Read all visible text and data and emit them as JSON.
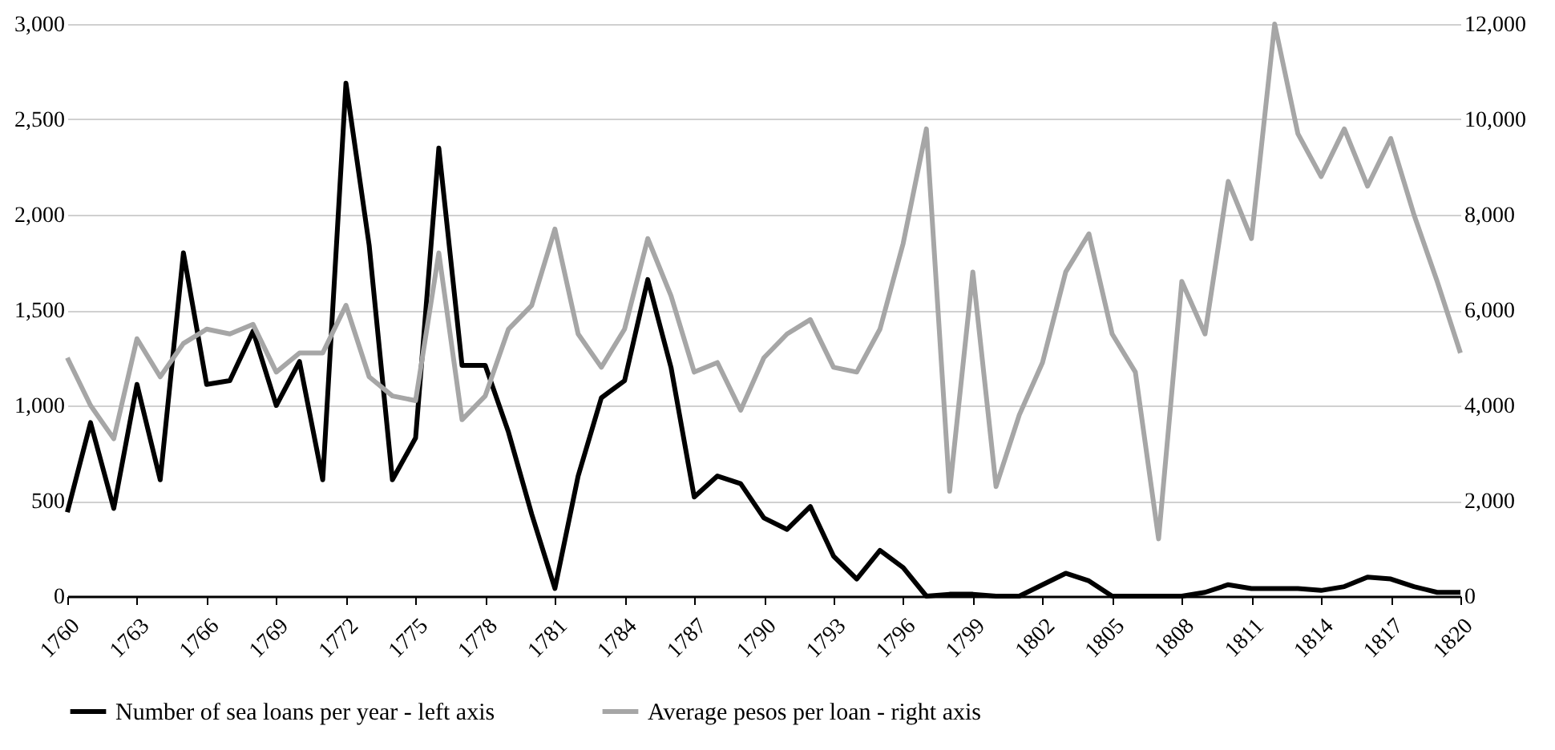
{
  "chart_data": {
    "type": "line",
    "x": [
      1760,
      1761,
      1762,
      1763,
      1764,
      1765,
      1766,
      1767,
      1768,
      1769,
      1770,
      1771,
      1772,
      1773,
      1774,
      1775,
      1776,
      1777,
      1778,
      1779,
      1780,
      1781,
      1782,
      1783,
      1784,
      1785,
      1786,
      1787,
      1788,
      1789,
      1790,
      1791,
      1792,
      1793,
      1794,
      1795,
      1796,
      1797,
      1798,
      1799,
      1800,
      1801,
      1802,
      1803,
      1804,
      1805,
      1806,
      1807,
      1808,
      1809,
      1810,
      1811,
      1812,
      1813,
      1814,
      1815,
      1816,
      1817,
      1818,
      1819,
      1820
    ],
    "series": [
      {
        "name": "Number of sea loans per year - left axis",
        "color": "#000000",
        "values": [
          440,
          910,
          460,
          1110,
          610,
          1800,
          1110,
          1130,
          1390,
          1000,
          1230,
          610,
          2690,
          1840,
          610,
          830,
          2350,
          1210,
          1210,
          860,
          430,
          40,
          630,
          1040,
          1130,
          1660,
          1200,
          520,
          630,
          590,
          410,
          350,
          470,
          210,
          90,
          240,
          150,
          0,
          10,
          10,
          0,
          0,
          60,
          120,
          80,
          0,
          0,
          0,
          0,
          20,
          60,
          40,
          40,
          40,
          30,
          50,
          100,
          90,
          50,
          20,
          20
        ]
      },
      {
        "name": "Average pesos per loan - right axis",
        "color": "#a6a6a6",
        "axis": "y2",
        "values": [
          5000,
          4000,
          3300,
          5400,
          4600,
          5300,
          5600,
          5500,
          5700,
          4700,
          5100,
          5100,
          6100,
          4600,
          4200,
          4100,
          7200,
          3700,
          4200,
          5600,
          6100,
          7700,
          5500,
          4800,
          5600,
          7500,
          6300,
          4700,
          4900,
          3900,
          5000,
          5500,
          5800,
          4800,
          4700,
          5600,
          7400,
          9800,
          2200,
          6800,
          2300,
          3800,
          4900,
          6800,
          7600,
          5500,
          4700,
          1200,
          6600,
          5500,
          8700,
          7500,
          12000,
          9700,
          8800,
          9800,
          8600,
          9600,
          8000,
          6600,
          5100
        ]
      }
    ],
    "xlim": [
      1760,
      1820
    ],
    "xticks": [
      1760,
      1763,
      1766,
      1769,
      1772,
      1775,
      1778,
      1781,
      1784,
      1787,
      1790,
      1793,
      1796,
      1799,
      1802,
      1805,
      1808,
      1811,
      1814,
      1817,
      1820
    ],
    "ylim": [
      0,
      3000
    ],
    "yticks": [
      0,
      500,
      {
        "value": 1000,
        "label": "1,000"
      },
      {
        "value": 1500,
        "label": "1,500"
      },
      {
        "value": 2000,
        "label": "2,000"
      },
      {
        "value": 2500,
        "label": "2,500"
      },
      {
        "value": 3000,
        "label": "3,000"
      }
    ],
    "y2lim": [
      0,
      12000
    ],
    "y2ticks": [
      0,
      {
        "value": 2000,
        "label": "2,000"
      },
      {
        "value": 4000,
        "label": "4,000"
      },
      {
        "value": 6000,
        "label": "6,000"
      },
      {
        "value": 8000,
        "label": "8,000"
      },
      {
        "value": 10000,
        "label": "10,000"
      },
      {
        "value": 12000,
        "label": "12,000"
      }
    ],
    "grid": "y",
    "legend": "bottom",
    "marker": "none",
    "line_style": "solid"
  }
}
